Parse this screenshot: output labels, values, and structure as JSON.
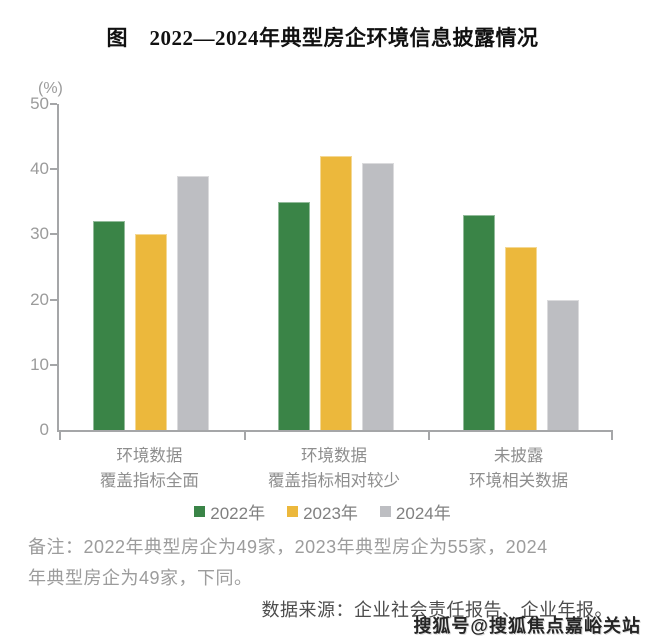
{
  "chart_data": {
    "type": "bar",
    "title": "图　2022—2024年典型房企环境信息披露情况",
    "unit_label": "(%)",
    "categories": [
      "环境数据\n覆盖指标全面",
      "环境数据\n覆盖指标相对较少",
      "未披露\n环境相关数据"
    ],
    "series": [
      {
        "name": "2022年",
        "color": "#3A8447",
        "values": [
          32,
          35,
          33
        ]
      },
      {
        "name": "2023年",
        "color": "#ECB83C",
        "values": [
          30,
          42,
          28
        ]
      },
      {
        "name": "2024年",
        "color": "#BDBEC2",
        "values": [
          39,
          41,
          20
        ]
      }
    ],
    "ylim": [
      0,
      50
    ],
    "yticks": [
      0,
      10,
      20,
      30,
      40,
      50
    ],
    "grid": false,
    "legend_position": "bottom"
  },
  "notes": {
    "remark_line1": "备注：2022年典型房企为49家，2023年典型房企为55家，2024",
    "remark_line2": "年典型房企为49家，下同。",
    "source": "数据来源：企业社会责任报告、企业年报。"
  },
  "watermark": "搜狐号@搜狐焦点嘉峪关站",
  "colors": {
    "green_2022": "#3A8447",
    "yellow_2023": "#ECB83C",
    "gray_2024": "#BDBEC2",
    "axis": "#A5A6A8",
    "tick_label": "#9B9B9B",
    "category_label": "#8E8E8E",
    "legend_label": "#808080",
    "note_text": "#9C9C9C",
    "source_text": "#4D4D4D",
    "title_text": "#111111"
  }
}
